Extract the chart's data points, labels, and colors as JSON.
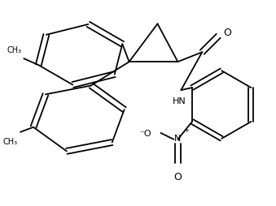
{
  "background_color": "#ffffff",
  "line_color": "#000000",
  "text_color": "#000000",
  "line_width": 1.3,
  "fig_width": 3.39,
  "fig_height": 2.55,
  "dpi": 100,
  "xlim": [
    0,
    339
  ],
  "ylim": [
    0,
    255
  ]
}
